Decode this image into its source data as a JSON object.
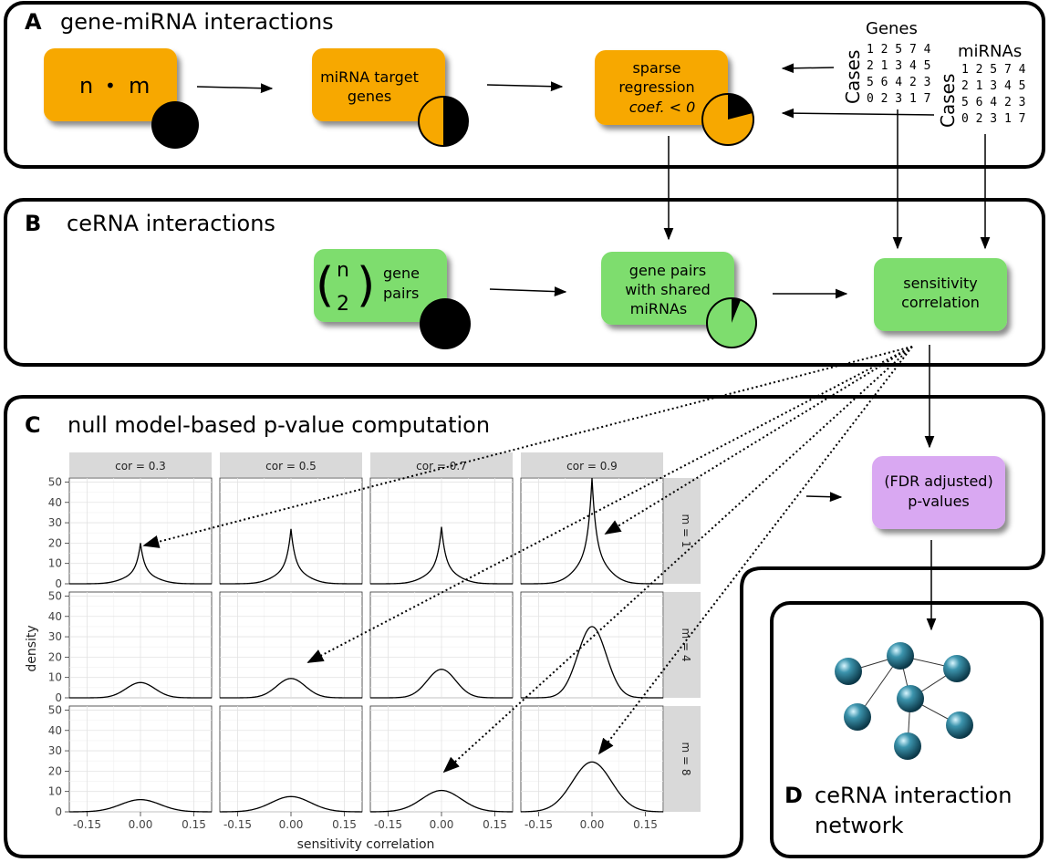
{
  "sections": {
    "a": {
      "letter": "A",
      "title": "gene-miRNA interactions"
    },
    "b": {
      "letter": "B",
      "title": "ceRNA interactions"
    },
    "c": {
      "letter": "C",
      "title": "null model-based p-value computation"
    },
    "d": {
      "letter": "D",
      "title_line1": "ceRNA interaction",
      "title_line2": "network"
    }
  },
  "boxes": {
    "nm": {
      "left": "n",
      "dot": "•",
      "right": "m"
    },
    "target": {
      "line1": "miRNA target",
      "line2": "genes"
    },
    "sparse": {
      "line1": "sparse",
      "line2": "regression",
      "line3": "coef. < 0"
    },
    "n2": {
      "top": "n",
      "bottom": "2",
      "line1": "gene",
      "line2": "pairs"
    },
    "shared": {
      "line1": "gene pairs",
      "line2": "with shared",
      "line3": "miRNAs"
    },
    "sensitivity": {
      "line1": "sensitivity",
      "line2": "correlation"
    },
    "fdr": {
      "line1": "(FDR adjusted)",
      "line2": "p-values"
    }
  },
  "matrices": {
    "genes": {
      "title": "Genes",
      "side": "Cases",
      "rows": [
        "1 2 5 7 4",
        "2 1 3 4 5",
        "5 6 4 2 3",
        "0 2 3 1 7"
      ]
    },
    "mirnas": {
      "title": "miRNAs",
      "side": "Cases",
      "rows": [
        "1 2 5 7 4",
        "2 1 3 4 5",
        "5 6 4 2 3",
        "0 2 3 1 7"
      ]
    }
  },
  "chart_data": {
    "type": "line",
    "xlabel": "sensitivity correlation",
    "ylabel": "density",
    "xlim": [
      -0.2,
      0.2
    ],
    "ylim": [
      0,
      52
    ],
    "xticks": [
      "-0.15",
      "0.00",
      "0.15"
    ],
    "yticks": [
      "0",
      "10",
      "20",
      "30",
      "40",
      "50"
    ],
    "columns": [
      "cor = 0.3",
      "cor = 0.5",
      "cor = 0.7",
      "cor = 0.9"
    ],
    "rows": [
      "m = 1",
      "m = 4",
      "m = 8"
    ],
    "grid": true,
    "peaks": [
      [
        20,
        27,
        28,
        52
      ],
      [
        7.5,
        9.5,
        14,
        35
      ],
      [
        6,
        7.5,
        10.5,
        24.5
      ]
    ]
  },
  "colors": {
    "orange": "#F7A800",
    "green": "#7EDD6E",
    "purple": "#D9A8F2",
    "strip": "#D9D9D9",
    "node": "#1A6B82"
  }
}
